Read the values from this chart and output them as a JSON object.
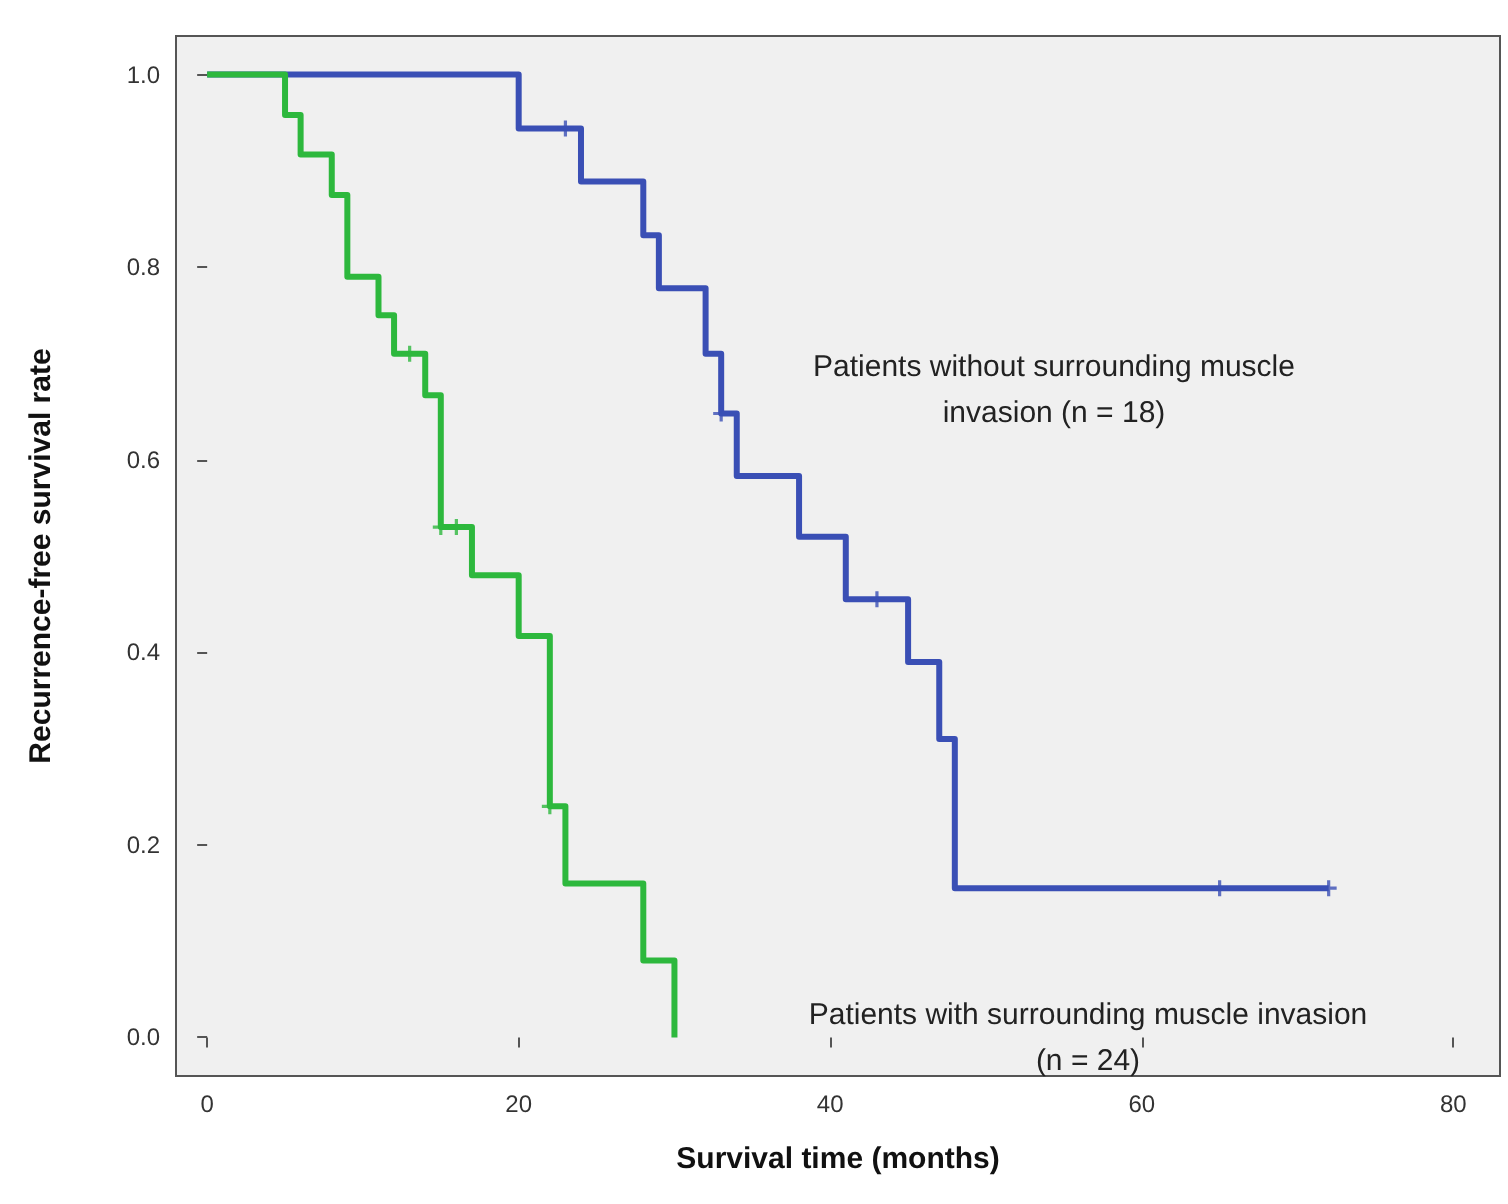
{
  "chart_data": {
    "type": "step",
    "xlabel": "Survival time (months)",
    "ylabel": "Recurrence-free survival rate",
    "xlim": [
      -2,
      83
    ],
    "xticks": [
      0,
      20,
      40,
      60,
      80
    ],
    "ylim": [
      -0.04,
      1.04
    ],
    "yticks": [
      {
        "value": 0,
        "label": "0.0"
      },
      0.2,
      0.4,
      0.6,
      0.8,
      {
        "value": 1,
        "label": "1.0"
      }
    ],
    "grid": false,
    "marker": "none",
    "line_style": "solid",
    "series": [
      {
        "color": "#3a4fb5",
        "x": [
          0,
          20,
          24,
          28,
          29,
          32,
          33,
          34,
          38,
          41,
          45,
          47,
          48,
          72
        ],
        "values": [
          1,
          0.944,
          0.889,
          0.833,
          0.778,
          0.71,
          0.648,
          0.583,
          0.52,
          0.455,
          0.39,
          0.31,
          0.155,
          0.155
        ]
      },
      {
        "color": "#2db83d",
        "x": [
          0,
          5,
          6,
          8,
          9,
          11,
          12,
          14,
          15,
          17,
          20,
          22,
          23,
          28,
          30
        ],
        "values": [
          1,
          0.958,
          0.917,
          0.875,
          0.79,
          0.75,
          0.71,
          0.667,
          0.53,
          0.48,
          0.417,
          0.24,
          0.16,
          0.08,
          0
        ]
      },
      {
        "type": "scatter",
        "marker": "cross",
        "color": "#3a4fb5",
        "x": [
          23,
          33,
          43,
          65,
          72
        ],
        "values": [
          0.944,
          0.648,
          0.455,
          0.155,
          0.155
        ]
      },
      {
        "type": "scatter",
        "marker": "cross",
        "color": "#2db83d",
        "x": [
          13,
          15,
          16,
          22
        ],
        "values": [
          0.71,
          0.53,
          0.53,
          0.24
        ]
      }
    ],
    "annotations": [
      "Patients without surrounding muscle\ninvasion (n = 18)",
      "Patients with surrounding muscle invasion\n(n = 24)"
    ]
  }
}
